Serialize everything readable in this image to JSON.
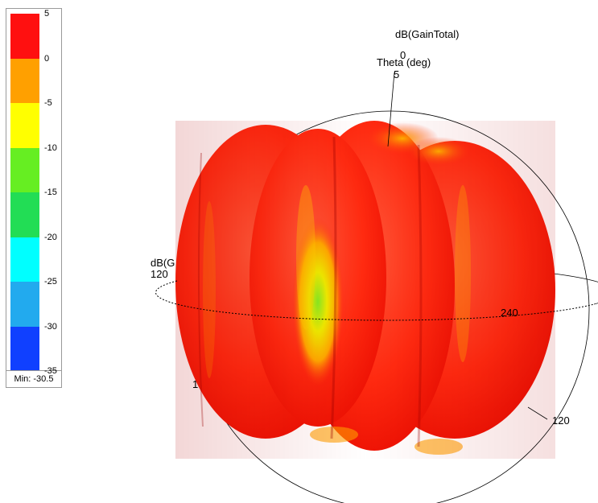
{
  "chart_data": {
    "type": "3d-polar-radiation-pattern",
    "title": "dB(GainTotal)",
    "axis_label": "Theta (deg)",
    "colorbar": {
      "ticks": [
        "5",
        "0",
        "-5",
        "-10",
        "-15",
        "-20",
        "-25",
        "-30",
        "-35"
      ],
      "colors": [
        "#ff1010",
        "#ffa000",
        "#ffff00",
        "#66ee22",
        "#22dd55",
        "#00ffff",
        "#22aaee",
        "#1040ff"
      ],
      "min_label": "Min: -30.5"
    },
    "annotations": {
      "theta_zero": "0",
      "theta_five": "5",
      "phi_120_left": "120",
      "phi_240": "240",
      "ring_120": "120",
      "cut_label": "dB(G",
      "stray_tick": "1"
    }
  }
}
